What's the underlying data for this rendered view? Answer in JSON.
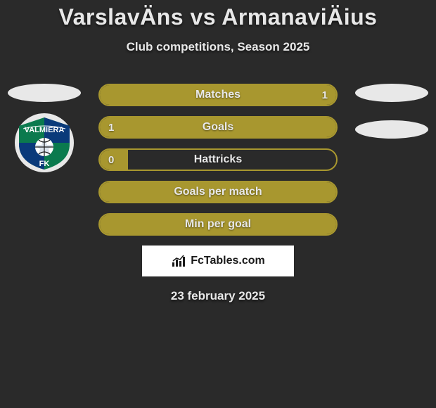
{
  "background_color": "#2a2a2a",
  "title": "VarslavÄns vs ArmanaviÄius",
  "subtitle": "Club competitions, Season 2025",
  "date": "23 february 2025",
  "brand": "FcTables.com",
  "colors": {
    "bar_fill": "#a8972f",
    "bar_border": "#a8972f",
    "text": "#e8e8e8",
    "badge": "#e8e8e8"
  },
  "team_left": {
    "crest_primary": "#0b7a4e",
    "crest_secondary": "#0a3a7a",
    "crest_text": "VALMIERA",
    "crest_sub": "FK"
  },
  "bars": [
    {
      "label": "Matches",
      "left": "",
      "right": "1",
      "fill_mode": "full"
    },
    {
      "label": "Goals",
      "left": "1",
      "right": "",
      "fill_mode": "full"
    },
    {
      "label": "Hattricks",
      "left": "0",
      "right": "",
      "fill_mode": "left",
      "left_width_pct": 12
    },
    {
      "label": "Goals per match",
      "left": "",
      "right": "",
      "fill_mode": "full"
    },
    {
      "label": "Min per goal",
      "left": "",
      "right": "",
      "fill_mode": "full"
    }
  ]
}
